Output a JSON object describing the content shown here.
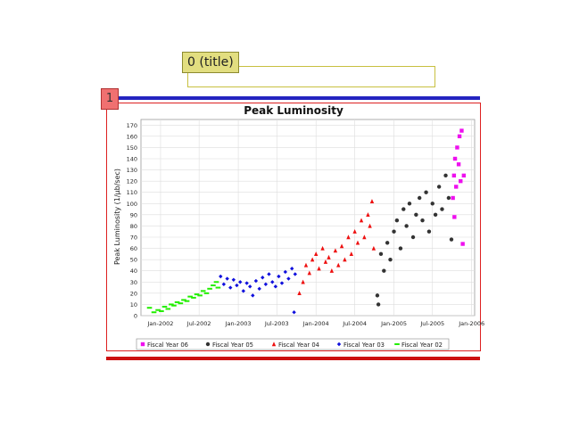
{
  "annotations": {
    "title_tag": "0 (title)",
    "figure_tag": "1"
  },
  "colors": {
    "title_annotation": "#c8c040",
    "figure_annotation": "#dd2020",
    "rule_top": "#2424c0",
    "rule_bottom": "#cc1010"
  },
  "chart_data": {
    "type": "scatter",
    "title": "Peak Luminosity",
    "xlabel": "",
    "ylabel": "Peak Luminosity (1/µb/sec)",
    "ylim": [
      0,
      175
    ],
    "xlim": [
      "2001-10-01",
      "2006-01-15"
    ],
    "yticks": [
      0,
      10,
      20,
      30,
      40,
      50,
      60,
      70,
      80,
      90,
      100,
      110,
      120,
      130,
      140,
      150,
      160,
      170
    ],
    "xtick_labels": [
      "Jan-2002",
      "Jul-2002",
      "Jan-2003",
      "Jul-2003",
      "Jan-2004",
      "Jul-2004",
      "Jan-2005",
      "Jul-2005",
      "Jan-2006"
    ],
    "xtick_dates": [
      "2002-01-01",
      "2002-07-01",
      "2003-01-01",
      "2003-07-01",
      "2004-01-01",
      "2004-07-01",
      "2005-01-01",
      "2005-07-01",
      "2006-01-01"
    ],
    "grid": true,
    "legend_position": "bottom",
    "legend": [
      "Fiscal Year 06",
      "Fiscal Year 05",
      "Fiscal Year 04",
      "Fiscal Year 03",
      "Fiscal Year 02"
    ],
    "series": [
      {
        "name": "Fiscal Year 02",
        "color": "#22ee00",
        "marker": "dash",
        "points": [
          [
            "2001-11-10",
            7
          ],
          [
            "2001-12-01",
            3
          ],
          [
            "2001-12-20",
            5
          ],
          [
            "2002-01-05",
            4
          ],
          [
            "2002-01-20",
            8
          ],
          [
            "2002-02-05",
            6
          ],
          [
            "2002-02-20",
            10
          ],
          [
            "2002-03-05",
            9
          ],
          [
            "2002-03-20",
            12
          ],
          [
            "2002-04-05",
            11
          ],
          [
            "2002-04-20",
            14
          ],
          [
            "2002-05-05",
            13
          ],
          [
            "2002-05-20",
            17
          ],
          [
            "2002-06-05",
            16
          ],
          [
            "2002-06-20",
            19
          ],
          [
            "2002-07-05",
            18
          ],
          [
            "2002-07-20",
            22
          ],
          [
            "2002-08-05",
            20
          ],
          [
            "2002-08-20",
            24
          ],
          [
            "2002-09-05",
            27
          ],
          [
            "2002-09-20",
            30
          ],
          [
            "2002-09-28",
            25
          ]
        ]
      },
      {
        "name": "Fiscal Year 03",
        "color": "#1010dd",
        "marker": "diamond",
        "points": [
          [
            "2002-10-10",
            35
          ],
          [
            "2002-10-25",
            28
          ],
          [
            "2002-11-10",
            33
          ],
          [
            "2002-11-25",
            25
          ],
          [
            "2002-12-10",
            32
          ],
          [
            "2002-12-25",
            27
          ],
          [
            "2003-01-10",
            30
          ],
          [
            "2003-01-25",
            22
          ],
          [
            "2003-02-10",
            29
          ],
          [
            "2003-02-25",
            26
          ],
          [
            "2003-03-10",
            18
          ],
          [
            "2003-03-25",
            31
          ],
          [
            "2003-04-10",
            24
          ],
          [
            "2003-04-25",
            34
          ],
          [
            "2003-05-10",
            28
          ],
          [
            "2003-05-25",
            37
          ],
          [
            "2003-06-10",
            30
          ],
          [
            "2003-06-25",
            26
          ],
          [
            "2003-07-10",
            35
          ],
          [
            "2003-07-25",
            29
          ],
          [
            "2003-08-10",
            39
          ],
          [
            "2003-08-25",
            33
          ],
          [
            "2003-09-10",
            42
          ],
          [
            "2003-09-25",
            37
          ],
          [
            "2003-09-20",
            3
          ]
        ]
      },
      {
        "name": "Fiscal Year 04",
        "color": "#ee1010",
        "marker": "triangle",
        "points": [
          [
            "2003-10-15",
            20
          ],
          [
            "2003-11-01",
            30
          ],
          [
            "2003-11-15",
            45
          ],
          [
            "2003-12-01",
            38
          ],
          [
            "2003-12-15",
            50
          ],
          [
            "2004-01-01",
            55
          ],
          [
            "2004-01-15",
            42
          ],
          [
            "2004-02-01",
            60
          ],
          [
            "2004-02-15",
            48
          ],
          [
            "2004-03-01",
            52
          ],
          [
            "2004-03-15",
            40
          ],
          [
            "2004-04-01",
            58
          ],
          [
            "2004-04-15",
            45
          ],
          [
            "2004-05-01",
            62
          ],
          [
            "2004-05-15",
            50
          ],
          [
            "2004-06-01",
            70
          ],
          [
            "2004-06-15",
            55
          ],
          [
            "2004-07-01",
            75
          ],
          [
            "2004-07-15",
            65
          ],
          [
            "2004-08-01",
            85
          ],
          [
            "2004-08-15",
            70
          ],
          [
            "2004-09-01",
            90
          ],
          [
            "2004-09-10",
            80
          ],
          [
            "2004-09-20",
            102
          ],
          [
            "2004-09-28",
            60
          ]
        ]
      },
      {
        "name": "Fiscal Year 05",
        "color": "#333333",
        "marker": "circle",
        "points": [
          [
            "2004-10-15",
            18
          ],
          [
            "2004-11-01",
            55
          ],
          [
            "2004-11-15",
            40
          ],
          [
            "2004-12-01",
            65
          ],
          [
            "2004-12-15",
            50
          ],
          [
            "2005-01-01",
            75
          ],
          [
            "2005-01-15",
            85
          ],
          [
            "2005-02-01",
            60
          ],
          [
            "2005-02-15",
            95
          ],
          [
            "2005-03-01",
            80
          ],
          [
            "2005-03-15",
            100
          ],
          [
            "2005-04-01",
            70
          ],
          [
            "2005-04-15",
            90
          ],
          [
            "2005-05-01",
            105
          ],
          [
            "2005-05-15",
            85
          ],
          [
            "2005-06-01",
            110
          ],
          [
            "2005-06-15",
            75
          ],
          [
            "2005-07-01",
            100
          ],
          [
            "2005-07-15",
            90
          ],
          [
            "2005-08-01",
            115
          ],
          [
            "2005-08-15",
            95
          ],
          [
            "2005-09-01",
            125
          ],
          [
            "2005-09-15",
            105
          ],
          [
            "2005-09-28",
            68
          ],
          [
            "2004-10-20",
            10
          ]
        ]
      },
      {
        "name": "Fiscal Year 06",
        "color": "#ee10ee",
        "marker": "square",
        "points": [
          [
            "2005-10-05",
            105
          ],
          [
            "2005-10-10",
            125
          ],
          [
            "2005-10-15",
            140
          ],
          [
            "2005-10-20",
            115
          ],
          [
            "2005-10-25",
            150
          ],
          [
            "2005-11-01",
            135
          ],
          [
            "2005-11-05",
            160
          ],
          [
            "2005-11-10",
            120
          ],
          [
            "2005-11-15",
            165
          ],
          [
            "2005-11-20",
            64
          ],
          [
            "2005-11-25",
            125
          ],
          [
            "2005-10-12",
            88
          ]
        ]
      }
    ]
  }
}
